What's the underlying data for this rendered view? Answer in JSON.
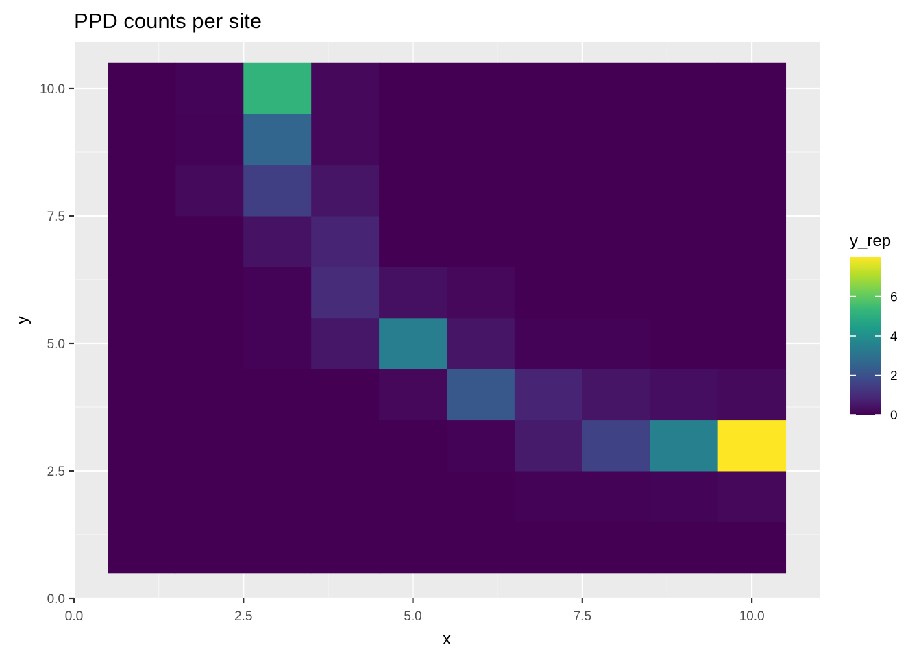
{
  "chart_data": {
    "type": "heatmap",
    "title": "PPD counts per site",
    "xlabel": "x",
    "ylabel": "y",
    "xlim": [
      0,
      11
    ],
    "ylim": [
      0,
      10.9
    ],
    "x_ticks": [
      0.0,
      2.5,
      5.0,
      7.5,
      10.0
    ],
    "x_tick_labels": [
      "0.0",
      "2.5",
      "5.0",
      "7.5",
      "10.0"
    ],
    "y_ticks": [
      0.0,
      2.5,
      5.0,
      7.5,
      10.0
    ],
    "y_tick_labels": [
      "0.0",
      "2.5",
      "5.0",
      "7.5",
      "10.0"
    ],
    "grid": true,
    "x": [
      1,
      2,
      3,
      4,
      5,
      6,
      7,
      8,
      9,
      10
    ],
    "y": [
      1,
      2,
      3,
      4,
      5,
      6,
      7,
      8,
      9,
      10
    ],
    "z": [
      [
        0,
        0,
        0,
        0,
        0,
        0,
        0,
        0,
        0,
        0
      ],
      [
        0,
        0,
        0,
        0,
        0,
        0,
        0.05,
        0.05,
        0.1,
        0.15
      ],
      [
        0,
        0,
        0,
        0,
        0,
        0.05,
        0.6,
        1.6,
        3.5,
        8.0
      ],
      [
        0,
        0,
        0,
        0,
        0.15,
        2.2,
        0.8,
        0.45,
        0.3,
        0.2
      ],
      [
        0,
        0,
        0.05,
        0.5,
        3.4,
        0.45,
        0.05,
        0.05,
        0,
        0
      ],
      [
        0,
        0,
        0.05,
        1.0,
        0.35,
        0.15,
        0,
        0,
        0,
        0
      ],
      [
        0,
        0,
        0.4,
        0.8,
        0,
        0,
        0,
        0,
        0,
        0
      ],
      [
        0,
        0.2,
        1.5,
        0.45,
        0,
        0,
        0,
        0,
        0,
        0
      ],
      [
        0,
        0.05,
        2.6,
        0.15,
        0,
        0,
        0,
        0,
        0,
        0
      ],
      [
        0,
        0.1,
        5.2,
        0.15,
        0,
        0,
        0,
        0,
        0,
        0
      ]
    ],
    "legend": {
      "title": "y_rep",
      "position": "right",
      "range": [
        0,
        8
      ],
      "breaks": [
        0,
        2,
        4,
        6
      ],
      "break_labels": [
        "0",
        "2",
        "4",
        "6"
      ],
      "colormap": "viridis"
    }
  },
  "colors": {
    "panel_background": "#ebebeb",
    "grid_major": "#ffffff",
    "grid_minor": "#f5f5f5",
    "axis_tick": "#333333",
    "viridis": [
      "#440154",
      "#482878",
      "#3e4989",
      "#31688e",
      "#26828e",
      "#1f9e89",
      "#35b779",
      "#6ece58",
      "#b5de2b",
      "#fde725"
    ]
  }
}
